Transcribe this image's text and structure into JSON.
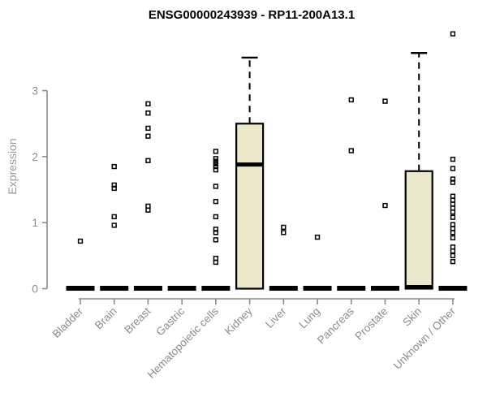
{
  "header": {
    "title": "ENSG00000243939 - RP11-200A13.1"
  },
  "colors": {
    "box_fill": "#ECE8CC",
    "box_stroke": "#000000",
    "axis": "#8c8c8c",
    "point": "#000000",
    "title": "#000000"
  },
  "chart_data": {
    "type": "boxplot",
    "title": "ENSG00000243939 - RP11-200A13.1",
    "xlabel": "",
    "ylabel": "Expression",
    "y_ticks": [
      0,
      1,
      2,
      3
    ],
    "ylim": [
      0,
      3.95
    ],
    "grid": false,
    "legend": "none",
    "categories": [
      "Bladder",
      "Brain",
      "Breast",
      "Gastric",
      "Hematopoietic cells",
      "Kidney",
      "Liver",
      "Lung",
      "Pancreas",
      "Prostate",
      "Skin",
      "Unknown / Other"
    ],
    "series": [
      {
        "category": "Bladder",
        "box": {
          "q1": 0,
          "median": 0,
          "q3": 0,
          "whisker_low": 0,
          "whisker_high": 0
        },
        "points": [
          0.72
        ]
      },
      {
        "category": "Brain",
        "box": {
          "q1": 0,
          "median": 0,
          "q3": 0,
          "whisker_low": 0,
          "whisker_high": 0
        },
        "points": [
          1.85,
          1.57,
          1.52,
          1.09,
          0.96
        ]
      },
      {
        "category": "Breast",
        "box": {
          "q1": 0,
          "median": 0,
          "q3": 0,
          "whisker_low": 0,
          "whisker_high": 0
        },
        "points": [
          2.8,
          2.66,
          2.43,
          2.31,
          1.94,
          1.25,
          1.19
        ]
      },
      {
        "category": "Gastric",
        "box": {
          "q1": 0,
          "median": 0,
          "q3": 0,
          "whisker_low": 0,
          "whisker_high": 0
        },
        "points": []
      },
      {
        "category": "Hematopoietic cells",
        "box": {
          "q1": 0,
          "median": 0,
          "q3": 0,
          "whisker_low": 0,
          "whisker_high": 0
        },
        "points": [
          2.08,
          1.97,
          1.93,
          1.89,
          1.85,
          1.8,
          1.55,
          1.32,
          1.09,
          0.9,
          0.85,
          0.74,
          0.46,
          0.4
        ]
      },
      {
        "category": "Kidney",
        "box": {
          "q1": 0,
          "median": 1.88,
          "q3": 2.5,
          "whisker_low": 0,
          "whisker_high": 3.5
        },
        "points": []
      },
      {
        "category": "Liver",
        "box": {
          "q1": 0,
          "median": 0,
          "q3": 0,
          "whisker_low": 0,
          "whisker_high": 0
        },
        "points": [
          0.93,
          0.85
        ]
      },
      {
        "category": "Lung",
        "box": {
          "q1": 0,
          "median": 0,
          "q3": 0,
          "whisker_low": 0,
          "whisker_high": 0
        },
        "points": [
          0.78
        ]
      },
      {
        "category": "Pancreas",
        "box": {
          "q1": 0,
          "median": 0,
          "q3": 0,
          "whisker_low": 0,
          "whisker_high": 0
        },
        "points": [
          2.86,
          2.09
        ]
      },
      {
        "category": "Prostate",
        "box": {
          "q1": 0,
          "median": 0,
          "q3": 0,
          "whisker_low": 0,
          "whisker_high": 0
        },
        "points": [
          2.84,
          1.26
        ]
      },
      {
        "category": "Skin",
        "box": {
          "q1": 0,
          "median": 0,
          "q3": 1.78,
          "whisker_low": 0,
          "whisker_high": 3.57
        },
        "points": []
      },
      {
        "category": "Unknown / Other",
        "box": {
          "q1": 0,
          "median": 0,
          "q3": 0,
          "whisker_low": 0,
          "whisker_high": 0
        },
        "points": [
          3.86,
          1.96,
          1.82,
          1.66,
          1.61,
          1.4,
          1.34,
          1.28,
          1.22,
          1.16,
          1.08,
          0.97,
          0.91,
          0.85,
          0.77,
          0.63,
          0.57,
          0.5,
          0.41
        ]
      }
    ]
  }
}
